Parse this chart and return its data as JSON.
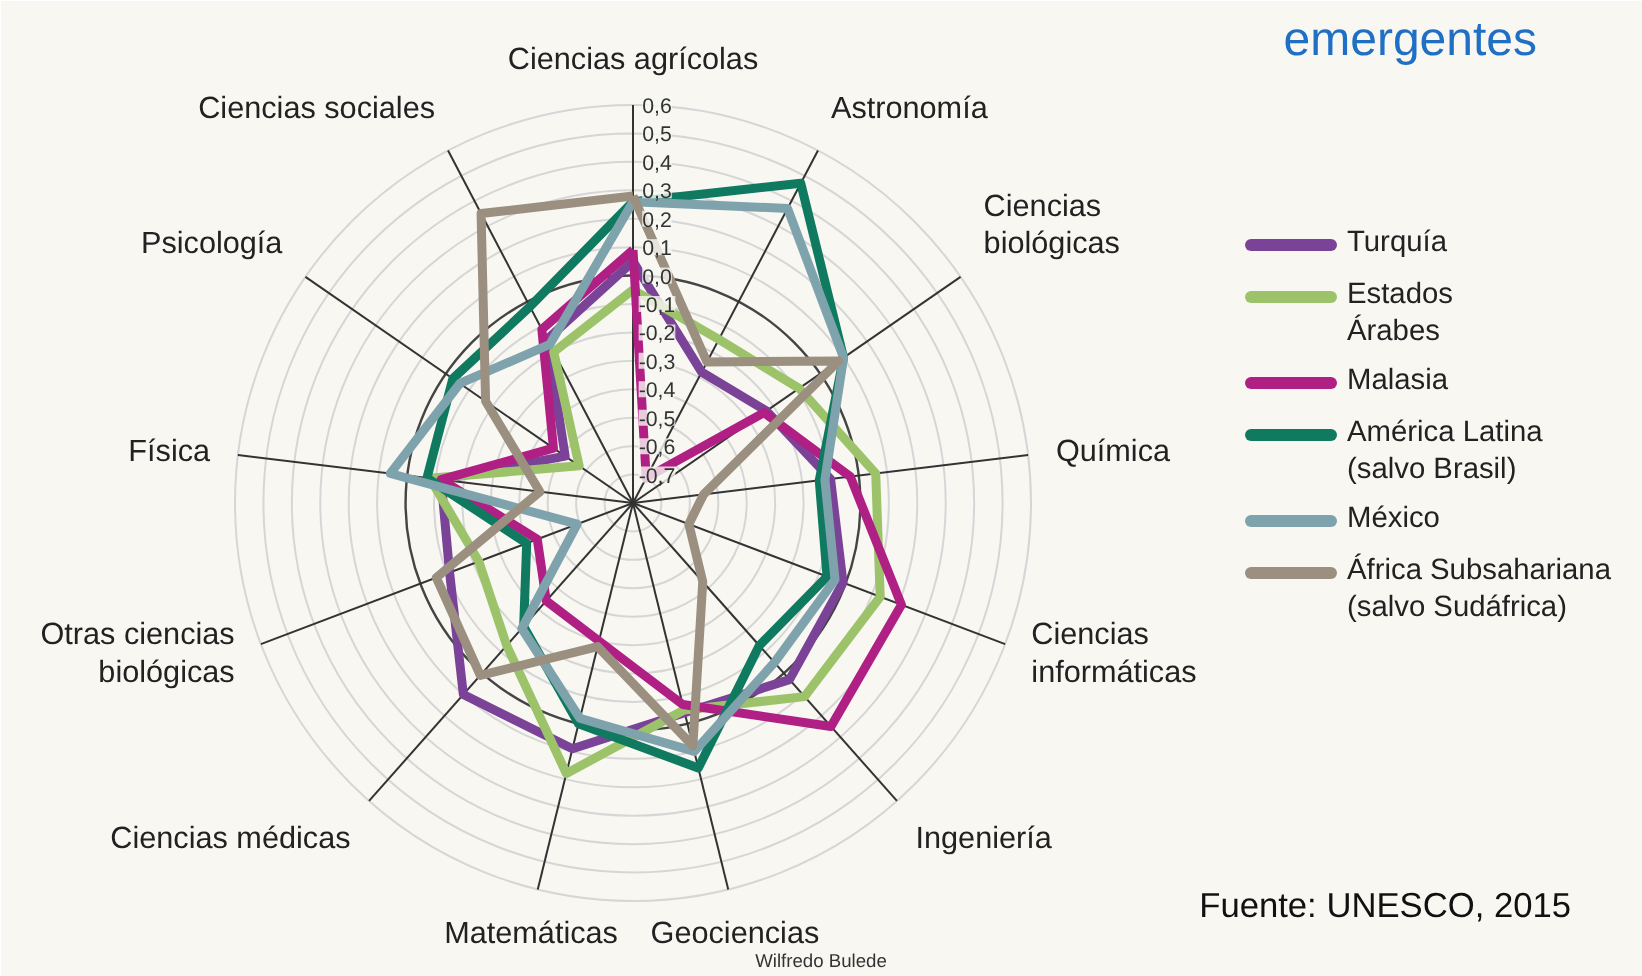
{
  "chart_data": {
    "type": "radar",
    "title": "emergentes",
    "categories": [
      "Ciencias agrícolas",
      "Astronomía",
      "Ciencias\nbiológicas",
      "Química",
      "Ciencias\ninformáticas",
      "Ingeniería",
      "Geociencias",
      "Matemáticas",
      "Ciencias médicas",
      "Otras ciencias\nbiológicas",
      "Física",
      "Psicología",
      "Ciencias sociales"
    ],
    "series": [
      {
        "name": "Turquía",
        "color": "#7b4397",
        "values": [
          0.05,
          -0.28,
          -0.23,
          -0.1,
          -0.01,
          0.03,
          -0.04,
          0.09,
          0.1,
          -0.11,
          -0.12,
          -0.51,
          -0.15
        ]
      },
      {
        "name": "Estados\nÁrabes",
        "color": "#9dc36a",
        "values": [
          -0.05,
          -0.15,
          -0.09,
          0.06,
          0.13,
          0.11,
          -0.05,
          0.18,
          -0.13,
          -0.22,
          -0.08,
          -0.57,
          -0.2
        ]
      },
      {
        "name": "Malasia",
        "color": "#b01f84",
        "values": [
          0.09,
          -0.7,
          -0.24,
          -0.03,
          0.21,
          0.25,
          -0.07,
          -0.3,
          -0.34,
          -0.44,
          -0.12,
          -0.46,
          -0.11
        ]
      },
      {
        "name": "América Latina\n(salvo Brasil)",
        "color": "#0f7a5f",
        "values": [
          0.26,
          0.47,
          0.1,
          -0.14,
          -0.07,
          -0.13,
          0.16,
          0.0,
          -0.22,
          -0.4,
          -0.07,
          -0.03,
          -0.02
        ]
      },
      {
        "name": "México",
        "color": "#7fa3ad",
        "values": [
          0.26,
          0.37,
          0.1,
          -0.12,
          -0.04,
          -0.05,
          0.1,
          -0.02,
          -0.21,
          -0.59,
          0.06,
          -0.06,
          -0.17
        ]
      },
      {
        "name": "África Subsahariana\n(salvo Sudáfrica)",
        "color": "#9b8f80",
        "values": [
          0.28,
          -0.24,
          0.08,
          -0.55,
          -0.59,
          -0.43,
          0.08,
          -0.28,
          0.01,
          -0.06,
          -0.47,
          -0.17,
          0.35
        ]
      }
    ],
    "ylim": [
      -0.8,
      0.6
    ],
    "yticks": [
      {
        "value": -0.7,
        "label": "-0,7"
      },
      {
        "value": -0.6,
        "label": "-0,6"
      },
      {
        "value": -0.5,
        "label": "-0,5"
      },
      {
        "value": -0.4,
        "label": "-0,4"
      },
      {
        "value": -0.3,
        "label": "-0,3"
      },
      {
        "value": -0.2,
        "label": "-0,2"
      },
      {
        "value": -0.1,
        "label": "-0,1"
      },
      {
        "value": 0,
        "label": "0,0"
      },
      {
        "value": 0.1,
        "label": "0,1"
      },
      {
        "value": 0.2,
        "label": "0,2"
      },
      {
        "value": 0.3,
        "label": "0,3"
      },
      {
        "value": 0.4,
        "label": "0,4"
      },
      {
        "value": 0.5,
        "label": "0,5"
      },
      {
        "value": 0.6,
        "label": "0,6"
      }
    ],
    "grid": true,
    "legend": "right",
    "annotations": [
      "Fuente: UNESCO, 2015",
      "Wilfredo Bulede"
    ]
  }
}
